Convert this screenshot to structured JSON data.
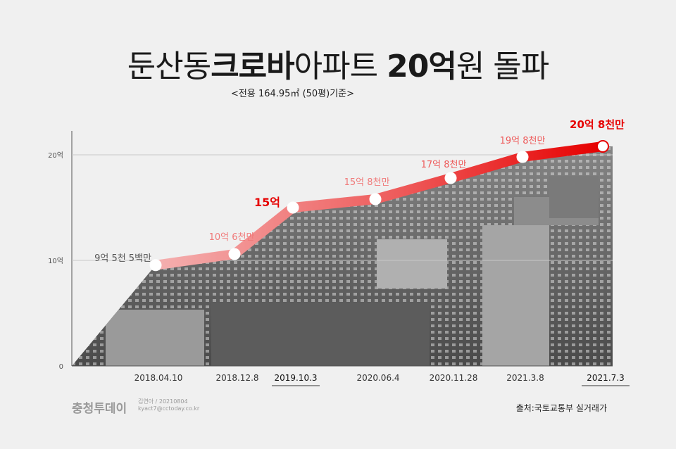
{
  "title": {
    "part1": "둔산동",
    "part2": "크로바",
    "part3": "아파트",
    "part4": "20억",
    "part5": "원 돌파"
  },
  "subtitle": "<전용 164.95㎡ (50평)기준>",
  "footer": {
    "logo": "충청투데이",
    "credit_line1": "김연아 / 20210804",
    "credit_line2": "kyact7@cctoday.co.kr",
    "source": "출처:국토교통부 실거래가"
  },
  "colors": {
    "accent": "#e60000",
    "light": "#f07a7a",
    "mid": "#ee5a5a",
    "axis": "#555555"
  },
  "chart_data": {
    "type": "line",
    "title": "둔산동크로바아파트 20억원 돌파",
    "ylim": [
      0,
      20
    ],
    "yticks": [
      {
        "v": 0,
        "label": "0"
      },
      {
        "v": 10,
        "label": "10억"
      },
      {
        "v": 20,
        "label": "20억"
      }
    ],
    "series": [
      {
        "points": [
          {
            "x": "2018.04.10",
            "y": 9.55,
            "label": "9억 5천 5백만"
          },
          {
            "x": "2018.12.8",
            "y": 10.6,
            "label": "10억 6천만"
          },
          {
            "x": "2019.10.3",
            "y": 15.0,
            "label": "15억"
          },
          {
            "x": "2020.06.4",
            "y": 15.8,
            "label": "15억 8천만"
          },
          {
            "x": "2020.11.28",
            "y": 17.8,
            "label": "17억 8천만"
          },
          {
            "x": "2021.3.8",
            "y": 19.8,
            "label": "19억 8천만"
          },
          {
            "x": "2021.7.3",
            "y": 20.8,
            "label": "20억 8천만"
          }
        ]
      }
    ],
    "highlighted_dates": [
      "2019.10.3",
      "2021.7.3"
    ]
  }
}
